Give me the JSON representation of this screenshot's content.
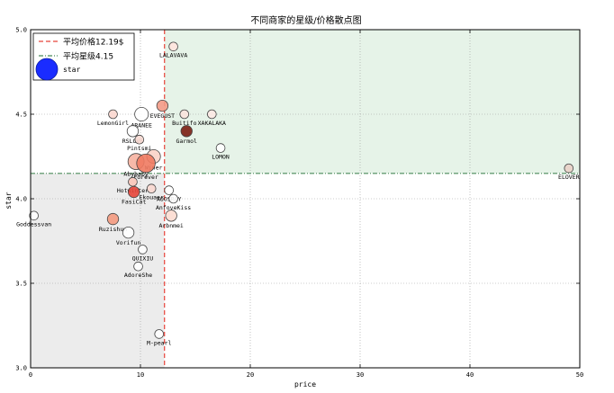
{
  "chart_data": {
    "type": "scatter",
    "title": "不同商家的星级/价格散点图",
    "xlabel": "price",
    "ylabel": "star",
    "xlim": [
      0,
      50
    ],
    "ylim": [
      3.0,
      5.0
    ],
    "x_ticks": [
      "0",
      "10",
      "20",
      "30",
      "40",
      "50"
    ],
    "y_ticks": [
      "3.0",
      "3.5",
      "4.0",
      "4.5",
      "5.0"
    ],
    "grid": true,
    "legend_position": "top-left",
    "legend": {
      "price_line": "平均价格12.19$",
      "star_line": "平均星级4.15",
      "points": "star"
    },
    "mean_price": 12.19,
    "mean_star": 4.15,
    "colors": {
      "mean_price_line": "#e8433a",
      "mean_star_line": "#4a8a5a",
      "upper_right_fill": "#e6f3e8",
      "lower_left_fill": "#ececec",
      "legend_marker": "#1a2cff",
      "point_edge": "#444444"
    },
    "points": [
      {
        "label": "LALAVAVA",
        "x": 13.0,
        "y": 4.9,
        "s": 2,
        "color": "#ffe4de"
      },
      {
        "label": "EVEGUST",
        "x": 12.0,
        "y": 4.55,
        "s": 3,
        "color": "#f29a86"
      },
      {
        "label": "LemonGirl",
        "x": 7.5,
        "y": 4.5,
        "s": 2,
        "color": "#fbd7cf"
      },
      {
        "label": "ARANEE",
        "x": 10.1,
        "y": 4.5,
        "s": 4,
        "color": "#ffffff"
      },
      {
        "label": "Buitifo",
        "x": 14.0,
        "y": 4.5,
        "s": 2,
        "color": "#fae3dd"
      },
      {
        "label": "XAKALAKA",
        "x": 16.5,
        "y": 4.5,
        "s": 2,
        "color": "#fde9e4"
      },
      {
        "label": "RSLOVE",
        "x": 9.3,
        "y": 4.4,
        "s": 3,
        "color": "#ffffff"
      },
      {
        "label": "Pintsmi",
        "x": 9.9,
        "y": 4.35,
        "s": 2,
        "color": "#fadcd4"
      },
      {
        "label": "Garmol",
        "x": 14.2,
        "y": 4.4,
        "s": 3,
        "color": "#7a1e12"
      },
      {
        "label": "LOMON",
        "x": 17.3,
        "y": 4.3,
        "s": 2,
        "color": "#ffffff"
      },
      {
        "label": "Winer",
        "x": 11.2,
        "y": 4.25,
        "s": 4,
        "color": "#fbd3c8"
      },
      {
        "label": "Abybaby",
        "x": 9.6,
        "y": 4.22,
        "s": 5,
        "color": "#f6b1a0"
      },
      {
        "label": "Forever",
        "x": 10.5,
        "y": 4.21,
        "s": 6,
        "color": "#f07a60"
      },
      {
        "label": "ELOVER",
        "x": 49.0,
        "y": 4.18,
        "s": 2,
        "color": "#e9d2c8"
      },
      {
        "label": "Hotwinter",
        "x": 9.3,
        "y": 4.1,
        "s": 2,
        "color": "#fbc7ba"
      },
      {
        "label": "Ekouaer",
        "x": 11.0,
        "y": 4.06,
        "s": 2,
        "color": "#f9d8d0"
      },
      {
        "label": "FasiCat",
        "x": 9.4,
        "y": 4.04,
        "s": 3,
        "color": "#e7453a"
      },
      {
        "label": "AOOSRAY",
        "x": 12.6,
        "y": 4.05,
        "s": 2,
        "color": "#ffffff"
      },
      {
        "label": "AnfoveKiss",
        "x": 13.0,
        "y": 4.0,
        "s": 2,
        "color": "#ffffff"
      },
      {
        "label": "Goddessvan",
        "x": 0.3,
        "y": 3.9,
        "s": 2,
        "color": "#ffffff"
      },
      {
        "label": "Arbnmei",
        "x": 12.8,
        "y": 3.9,
        "s": 3,
        "color": "#fcdcd0"
      },
      {
        "label": "Ruzishun",
        "x": 7.5,
        "y": 3.88,
        "s": 3,
        "color": "#f49a80"
      },
      {
        "label": "Vorifun",
        "x": 8.9,
        "y": 3.8,
        "s": 3,
        "color": "#ffffff"
      },
      {
        "label": "QUIXIU",
        "x": 10.2,
        "y": 3.7,
        "s": 2,
        "color": "#ffffff"
      },
      {
        "label": "AdoreShe",
        "x": 9.8,
        "y": 3.6,
        "s": 2,
        "color": "#ffffff"
      },
      {
        "label": "M-pearl",
        "x": 11.7,
        "y": 3.2,
        "s": 2,
        "color": "#ffffff"
      }
    ]
  }
}
